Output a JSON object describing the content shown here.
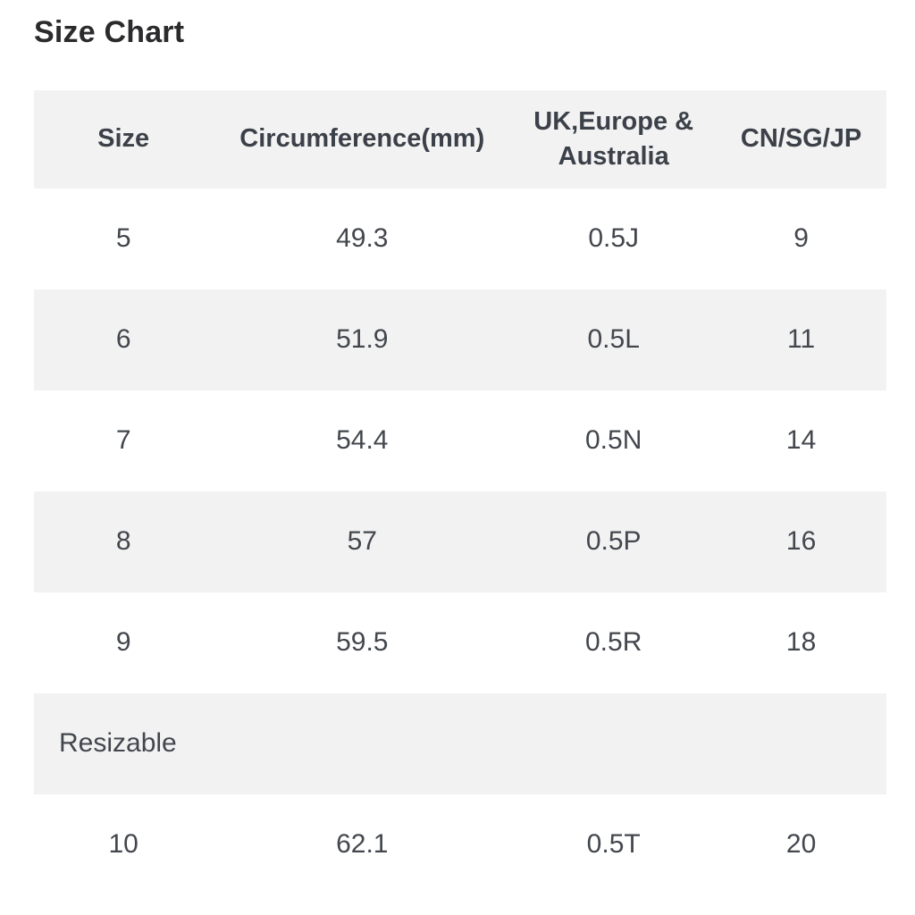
{
  "page": {
    "title": "Size Chart"
  },
  "table": {
    "columns": [
      "Size",
      "Circumference(mm)",
      "UK,Europe & Australia",
      "CN/SG/JP"
    ],
    "rows": [
      {
        "cells": [
          "5",
          "49.3",
          "0.5J",
          "9"
        ]
      },
      {
        "cells": [
          "6",
          "51.9",
          "0.5L",
          "11"
        ]
      },
      {
        "cells": [
          "7",
          "54.4",
          "0.5N",
          "14"
        ]
      },
      {
        "cells": [
          "8",
          "57",
          "0.5P",
          "16"
        ]
      },
      {
        "cells": [
          "9",
          "59.5",
          "0.5R",
          "18"
        ]
      },
      {
        "cells": [
          "Resizable"
        ]
      },
      {
        "cells": [
          "10",
          "62.1",
          "0.5T",
          "20"
        ]
      }
    ]
  },
  "colors": {
    "background": "#ffffff",
    "stripe": "#f2f2f2",
    "title_text": "#2b2b2d",
    "header_text": "#3c4149",
    "cell_text": "#43474d"
  }
}
